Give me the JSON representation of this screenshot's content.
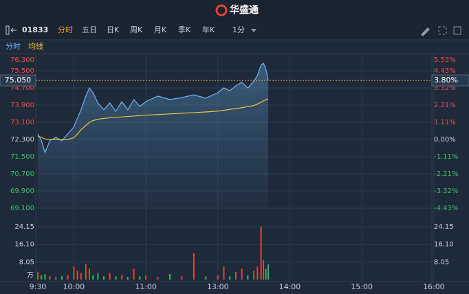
{
  "header": {
    "brand": "华盛通"
  },
  "toolbar": {
    "code": "01833",
    "tabs": [
      "分时",
      "五日",
      "日K",
      "周K",
      "月K",
      "季K",
      "年K"
    ],
    "interval": "1分"
  },
  "chart_data": {
    "type": "line",
    "x": [
      "9:30",
      "9:33",
      "9:36",
      "9:40",
      "9:45",
      "9:50",
      "9:55",
      "10:00",
      "10:03",
      "10:06",
      "10:10",
      "10:13",
      "10:16",
      "10:20",
      "10:25",
      "10:30",
      "10:35",
      "10:40",
      "10:45",
      "10:50",
      "10:55",
      "11:00",
      "11:10",
      "11:20",
      "11:30",
      "11:40",
      "11:50",
      "13:00",
      "13:05",
      "13:10",
      "13:15",
      "13:20",
      "13:25",
      "13:30",
      "13:33",
      "13:36",
      "13:38",
      "13:40",
      "13:42"
    ],
    "series": [
      {
        "name": "分时",
        "color": "#6fb2f2",
        "values": [
          72.56,
          72.24,
          71.69,
          72.24,
          72.4,
          72.24,
          72.56,
          72.88,
          73.29,
          73.68,
          74.32,
          74.7,
          74.48,
          74.0,
          73.68,
          74.0,
          73.61,
          74.06,
          73.68,
          74.16,
          73.84,
          74.06,
          74.32,
          74.16,
          74.25,
          74.38,
          74.22,
          74.48,
          74.7,
          74.57,
          74.8,
          74.96,
          74.7,
          75.02,
          75.28,
          75.76,
          75.85,
          75.6,
          75.05
        ]
      },
      {
        "name": "均线",
        "color": "#f0c23c",
        "values": [
          72.45,
          72.4,
          72.32,
          72.3,
          72.3,
          72.29,
          72.3,
          72.38,
          72.55,
          72.75,
          72.95,
          73.1,
          73.18,
          73.24,
          73.28,
          73.31,
          73.33,
          73.35,
          73.37,
          73.39,
          73.41,
          73.43,
          73.46,
          73.49,
          73.52,
          73.55,
          73.58,
          73.62,
          73.66,
          73.7,
          73.74,
          73.78,
          73.83,
          73.88,
          73.95,
          74.03,
          74.1,
          74.15,
          74.18
        ]
      }
    ],
    "volume": [
      3.5,
      2,
      2.5,
      1.5,
      1.2,
      1.5,
      2,
      6,
      4,
      3,
      7,
      5,
      2,
      3,
      1.5,
      3,
      1.5,
      2,
      1.2,
      5,
      1.5,
      1.8,
      1.2,
      2.5,
      1.5,
      12,
      1.5,
      2,
      6,
      1.5,
      3.5,
      5,
      2,
      4,
      6,
      24,
      9,
      5,
      7
    ],
    "volume_unit": "万",
    "ylim": [
      69.1,
      76.3
    ],
    "yticks": [
      {
        "value": 76.3,
        "label": "76.300"
      },
      {
        "value": 75.5,
        "label": "75.500"
      },
      {
        "value": 74.7,
        "label": "74.700"
      },
      {
        "value": 73.9,
        "label": "73.900"
      },
      {
        "value": 73.1,
        "label": "73.100"
      },
      {
        "value": 72.3,
        "label": "72.300"
      },
      {
        "value": 71.5,
        "label": "71.500"
      },
      {
        "value": 70.7,
        "label": "70.700"
      },
      {
        "value": 69.9,
        "label": "69.900"
      },
      {
        "value": 69.1,
        "label": "69.100"
      }
    ],
    "y2lim": [
      -4.43,
      5.53
    ],
    "y2ticks": [
      {
        "value": 5.53,
        "label": "5.53%"
      },
      {
        "value": 4.43,
        "label": "4.43%"
      },
      {
        "value": 3.32,
        "label": "3.32%"
      },
      {
        "value": 2.21,
        "label": "2.21%"
      },
      {
        "value": 1.11,
        "label": "1.11%"
      },
      {
        "value": 0,
        "label": "0.00%"
      },
      {
        "value": -1.11,
        "label": "-1.11%"
      },
      {
        "value": -2.21,
        "label": "-2.21%"
      },
      {
        "value": -3.32,
        "label": "-3.32%"
      },
      {
        "value": -4.43,
        "label": "-4.43%"
      }
    ],
    "vlim": [
      0,
      24.15
    ],
    "vticks": [
      24.15,
      {
        "value": 16.1,
        "label": "16.10"
      },
      8.05
    ],
    "xticks": [
      "9:30",
      "10:00",
      "11:00",
      "13:00",
      "14:00",
      "15:00",
      "16:00"
    ],
    "last_price": {
      "value": 75.05,
      "label": "75.050"
    },
    "last_change": {
      "value": 3.8,
      "label": "3.80%"
    },
    "grid": true
  }
}
